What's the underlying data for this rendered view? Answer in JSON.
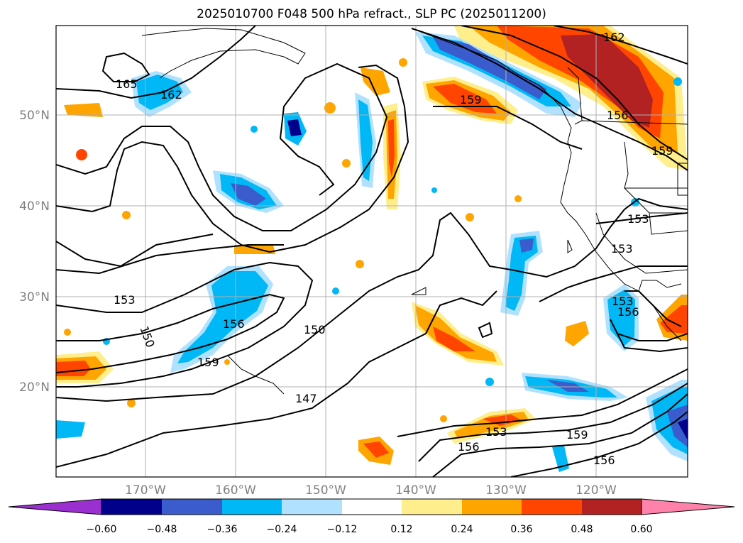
{
  "title": "2025010700 F048 500 hPa refract., SLP PC (2025011200)",
  "lat_labels": [
    "50°N",
    "40°N",
    "30°N",
    "20°N"
  ],
  "lon_labels": [
    "170°W",
    "160°W",
    "150°W",
    "140°W",
    "130°W",
    "120°W"
  ],
  "contour_labels": [
    "165",
    "162",
    "159",
    "162",
    "156",
    "159",
    "153",
    "153",
    "153",
    "150",
    "156",
    "159",
    "150",
    "147",
    "153",
    "156",
    "153",
    "159",
    "156",
    "156"
  ],
  "colorbar": {
    "ticks": [
      "−0.60",
      "−0.48",
      "−0.36",
      "−0.24",
      "−0.12",
      "0.12",
      "0.24",
      "0.36",
      "0.48",
      "0.60"
    ],
    "colors": [
      "#9b30d0",
      "#00008b",
      "#3a5ccc",
      "#00b8f5",
      "#b0e2ff",
      "#ffffff",
      "#ffee8c",
      "#ffa500",
      "#ff4500",
      "#b22222",
      "#ff82ab"
    ]
  },
  "palette": {
    "dark_blue": "#00008b",
    "blue": "#3a5ccc",
    "cyan": "#00b8f5",
    "light_blue": "#b0e2ff",
    "yellow": "#ffee8c",
    "orange": "#ffa500",
    "red_orange": "#ff4500",
    "dark_red": "#b22222",
    "pink": "#ff82ab"
  }
}
